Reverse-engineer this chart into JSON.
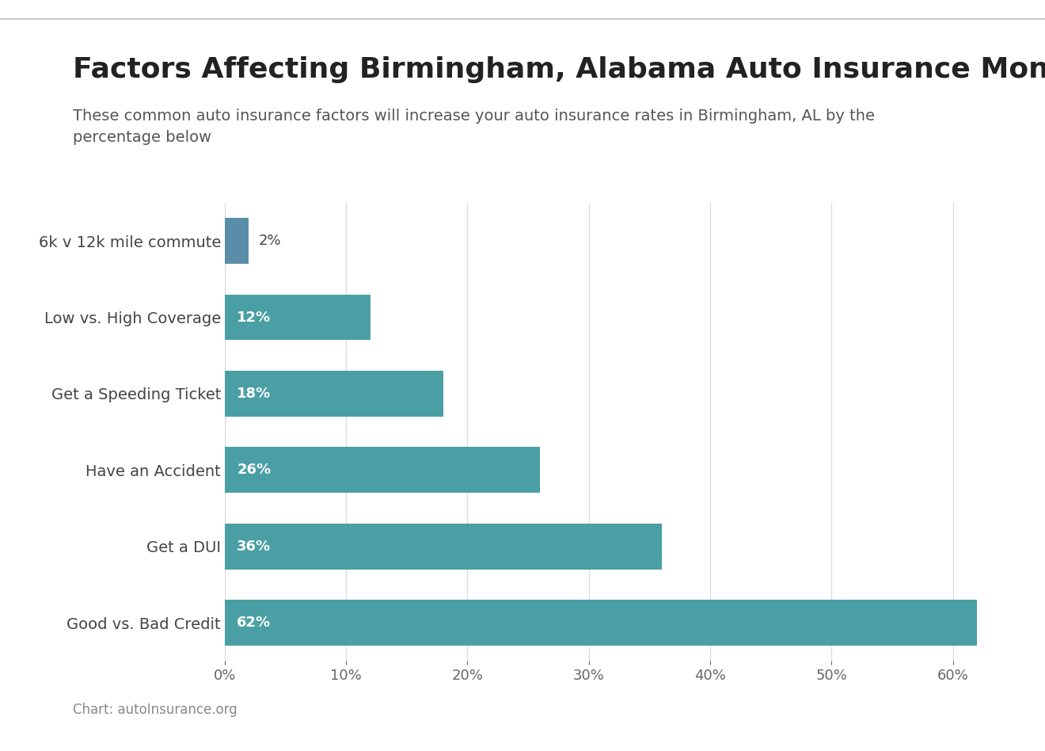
{
  "title": "Factors Affecting Birmingham, Alabama Auto Insurance Monthly Rates",
  "subtitle": "These common auto insurance factors will increase your auto insurance rates in Birmingham, AL by the\npercentage below",
  "categories_top_to_bottom": [
    "6k v 12k mile commute",
    "Low vs. High Coverage",
    "Get a Speeding Ticket",
    "Have an Accident",
    "Get a DUI",
    "Good vs. Bad Credit"
  ],
  "values_top_to_bottom": [
    2,
    12,
    18,
    26,
    36,
    62
  ],
  "bar_color": "#4a9fa5",
  "bar_color_2pct": "#5a8ea8",
  "title_fontsize": 26,
  "subtitle_fontsize": 14,
  "tick_fontsize": 13,
  "label_fontsize": 13,
  "category_fontsize": 14,
  "xlim_max": 65,
  "background_color": "#ffffff",
  "footer_text": "Chart: autoInsurance.org",
  "footer_fontsize": 12,
  "top_line_color": "#cccccc"
}
